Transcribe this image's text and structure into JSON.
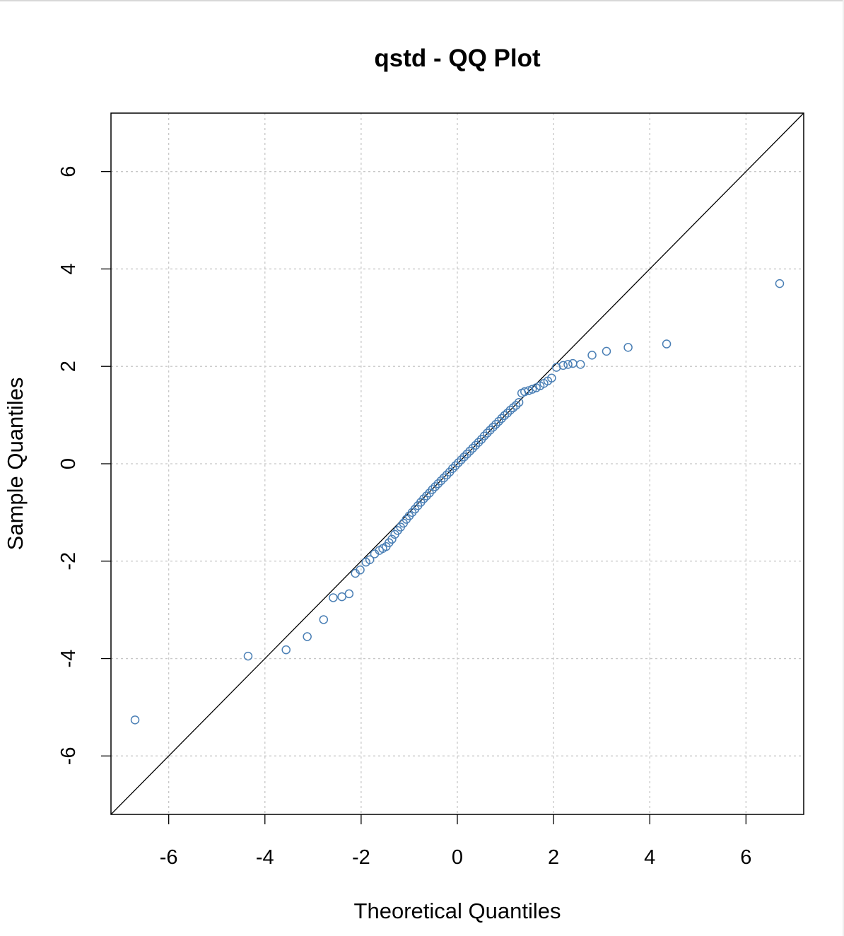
{
  "chart_data": {
    "type": "scatter",
    "title": "qstd - QQ Plot",
    "xlabel": "Theoretical Quantiles",
    "ylabel": "Sample Quantiles",
    "xlim": [
      -7.2,
      7.2
    ],
    "ylim": [
      -7.2,
      7.2
    ],
    "xticks": [
      -6,
      -4,
      -2,
      0,
      2,
      4,
      6
    ],
    "yticks": [
      -6,
      -4,
      -2,
      0,
      2,
      4,
      6
    ],
    "xtick_labels": [
      "-6",
      "-4",
      "-2",
      "0",
      "2",
      "4",
      "6"
    ],
    "ytick_labels": [
      "-6",
      "-4",
      "-2",
      "0",
      "2",
      "4",
      "6"
    ],
    "grid": true,
    "reference_line": {
      "slope": 1,
      "intercept": 0
    },
    "series": [
      {
        "marker_color": "#4a7fb5",
        "points": [
          {
            "x": -6.7,
            "y": -5.26
          },
          {
            "x": -4.35,
            "y": -3.95
          },
          {
            "x": -3.56,
            "y": -3.82
          },
          {
            "x": -3.12,
            "y": -3.55
          },
          {
            "x": -2.78,
            "y": -3.2
          },
          {
            "x": -2.58,
            "y": -2.75
          },
          {
            "x": -2.4,
            "y": -2.73
          },
          {
            "x": -2.25,
            "y": -2.67
          },
          {
            "x": -2.12,
            "y": -2.25
          },
          {
            "x": -2.02,
            "y": -2.18
          },
          {
            "x": -1.9,
            "y": -2.02
          },
          {
            "x": -1.82,
            "y": -1.97
          },
          {
            "x": -1.72,
            "y": -1.85
          },
          {
            "x": -1.62,
            "y": -1.78
          },
          {
            "x": -1.55,
            "y": -1.74
          },
          {
            "x": -1.48,
            "y": -1.7
          },
          {
            "x": -1.42,
            "y": -1.62
          },
          {
            "x": -1.36,
            "y": -1.55
          },
          {
            "x": -1.3,
            "y": -1.45
          },
          {
            "x": -1.24,
            "y": -1.37
          },
          {
            "x": -1.18,
            "y": -1.3
          },
          {
            "x": -1.12,
            "y": -1.22
          },
          {
            "x": -1.06,
            "y": -1.14
          },
          {
            "x": -1.0,
            "y": -1.07
          },
          {
            "x": -0.94,
            "y": -1.0
          },
          {
            "x": -0.88,
            "y": -0.93
          },
          {
            "x": -0.82,
            "y": -0.86
          },
          {
            "x": -0.76,
            "y": -0.79
          },
          {
            "x": -0.7,
            "y": -0.72
          },
          {
            "x": -0.64,
            "y": -0.66
          },
          {
            "x": -0.58,
            "y": -0.6
          },
          {
            "x": -0.52,
            "y": -0.53
          },
          {
            "x": -0.46,
            "y": -0.47
          },
          {
            "x": -0.4,
            "y": -0.41
          },
          {
            "x": -0.34,
            "y": -0.35
          },
          {
            "x": -0.28,
            "y": -0.29
          },
          {
            "x": -0.22,
            "y": -0.23
          },
          {
            "x": -0.16,
            "y": -0.17
          },
          {
            "x": -0.1,
            "y": -0.1
          },
          {
            "x": -0.04,
            "y": -0.04
          },
          {
            "x": 0.02,
            "y": 0.02
          },
          {
            "x": 0.08,
            "y": 0.08
          },
          {
            "x": 0.14,
            "y": 0.14
          },
          {
            "x": 0.2,
            "y": 0.2
          },
          {
            "x": 0.26,
            "y": 0.26
          },
          {
            "x": 0.32,
            "y": 0.32
          },
          {
            "x": 0.38,
            "y": 0.38
          },
          {
            "x": 0.44,
            "y": 0.44
          },
          {
            "x": 0.5,
            "y": 0.5
          },
          {
            "x": 0.56,
            "y": 0.57
          },
          {
            "x": 0.62,
            "y": 0.63
          },
          {
            "x": 0.68,
            "y": 0.69
          },
          {
            "x": 0.74,
            "y": 0.75
          },
          {
            "x": 0.8,
            "y": 0.81
          },
          {
            "x": 0.86,
            "y": 0.87
          },
          {
            "x": 0.92,
            "y": 0.93
          },
          {
            "x": 0.98,
            "y": 0.99
          },
          {
            "x": 1.04,
            "y": 1.04
          },
          {
            "x": 1.1,
            "y": 1.1
          },
          {
            "x": 1.16,
            "y": 1.15
          },
          {
            "x": 1.22,
            "y": 1.2
          },
          {
            "x": 1.28,
            "y": 1.26
          },
          {
            "x": 1.34,
            "y": 1.45
          },
          {
            "x": 1.4,
            "y": 1.48
          },
          {
            "x": 1.48,
            "y": 1.5
          },
          {
            "x": 1.56,
            "y": 1.53
          },
          {
            "x": 1.64,
            "y": 1.56
          },
          {
            "x": 1.72,
            "y": 1.6
          },
          {
            "x": 1.8,
            "y": 1.65
          },
          {
            "x": 1.88,
            "y": 1.7
          },
          {
            "x": 1.96,
            "y": 1.76
          },
          {
            "x": 2.06,
            "y": 1.98
          },
          {
            "x": 2.2,
            "y": 2.02
          },
          {
            "x": 2.3,
            "y": 2.04
          },
          {
            "x": 2.4,
            "y": 2.06
          },
          {
            "x": 2.56,
            "y": 2.04
          },
          {
            "x": 2.8,
            "y": 2.23
          },
          {
            "x": 3.1,
            "y": 2.31
          },
          {
            "x": 3.55,
            "y": 2.39
          },
          {
            "x": 4.35,
            "y": 2.46
          },
          {
            "x": 6.7,
            "y": 3.7
          }
        ]
      }
    ]
  }
}
